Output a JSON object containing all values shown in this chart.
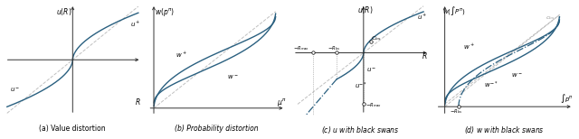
{
  "fig_width": 6.4,
  "fig_height": 1.54,
  "dpi": 100,
  "background": "#ffffff",
  "curve_color": "#2a6080",
  "curve_lw": 1.0,
  "diagonal_color": "#c0c0c0",
  "axis_color": "#333333",
  "text_color": "#000000",
  "captions": [
    "(a) Value distortion",
    "(b) Probability distortion",
    "(c) $u$ with black swans",
    "(d) $w$ with black swans"
  ]
}
